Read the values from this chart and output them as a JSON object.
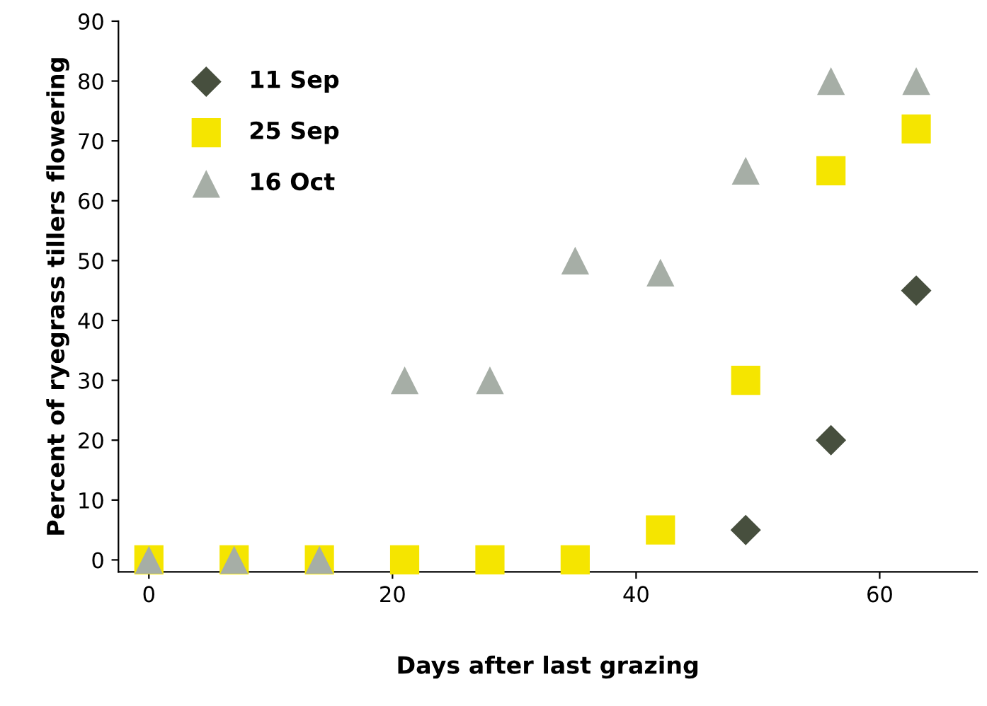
{
  "chart_data": {
    "type": "scatter",
    "xlabel": "Days after last grazing",
    "ylabel": "Percent of ryegrass tillers flowering",
    "x": [
      0,
      7,
      14,
      21,
      28,
      35,
      42,
      49,
      56,
      63
    ],
    "series": [
      {
        "name": "11 Sep",
        "color": "#474f3e",
        "marker": "diamond",
        "values": [
          null,
          null,
          null,
          null,
          null,
          null,
          null,
          5,
          20,
          45
        ]
      },
      {
        "name": "25 Sep",
        "color": "#f5e500",
        "marker": "square",
        "values": [
          0,
          0,
          0,
          0,
          0,
          0,
          5,
          30,
          65,
          72
        ]
      },
      {
        "name": "16 Oct",
        "color": "#a6aea6",
        "marker": "triangle",
        "values": [
          0,
          0,
          0,
          30,
          30,
          50,
          48,
          65,
          80,
          80
        ]
      }
    ],
    "xlim": [
      -2.5,
      68
    ],
    "ylim": [
      -2,
      90
    ],
    "xticks": [
      0,
      20,
      40,
      60
    ],
    "yticks": [
      0,
      10,
      20,
      30,
      40,
      50,
      60,
      70,
      80,
      90
    ],
    "grid": false,
    "legend": "top left"
  }
}
